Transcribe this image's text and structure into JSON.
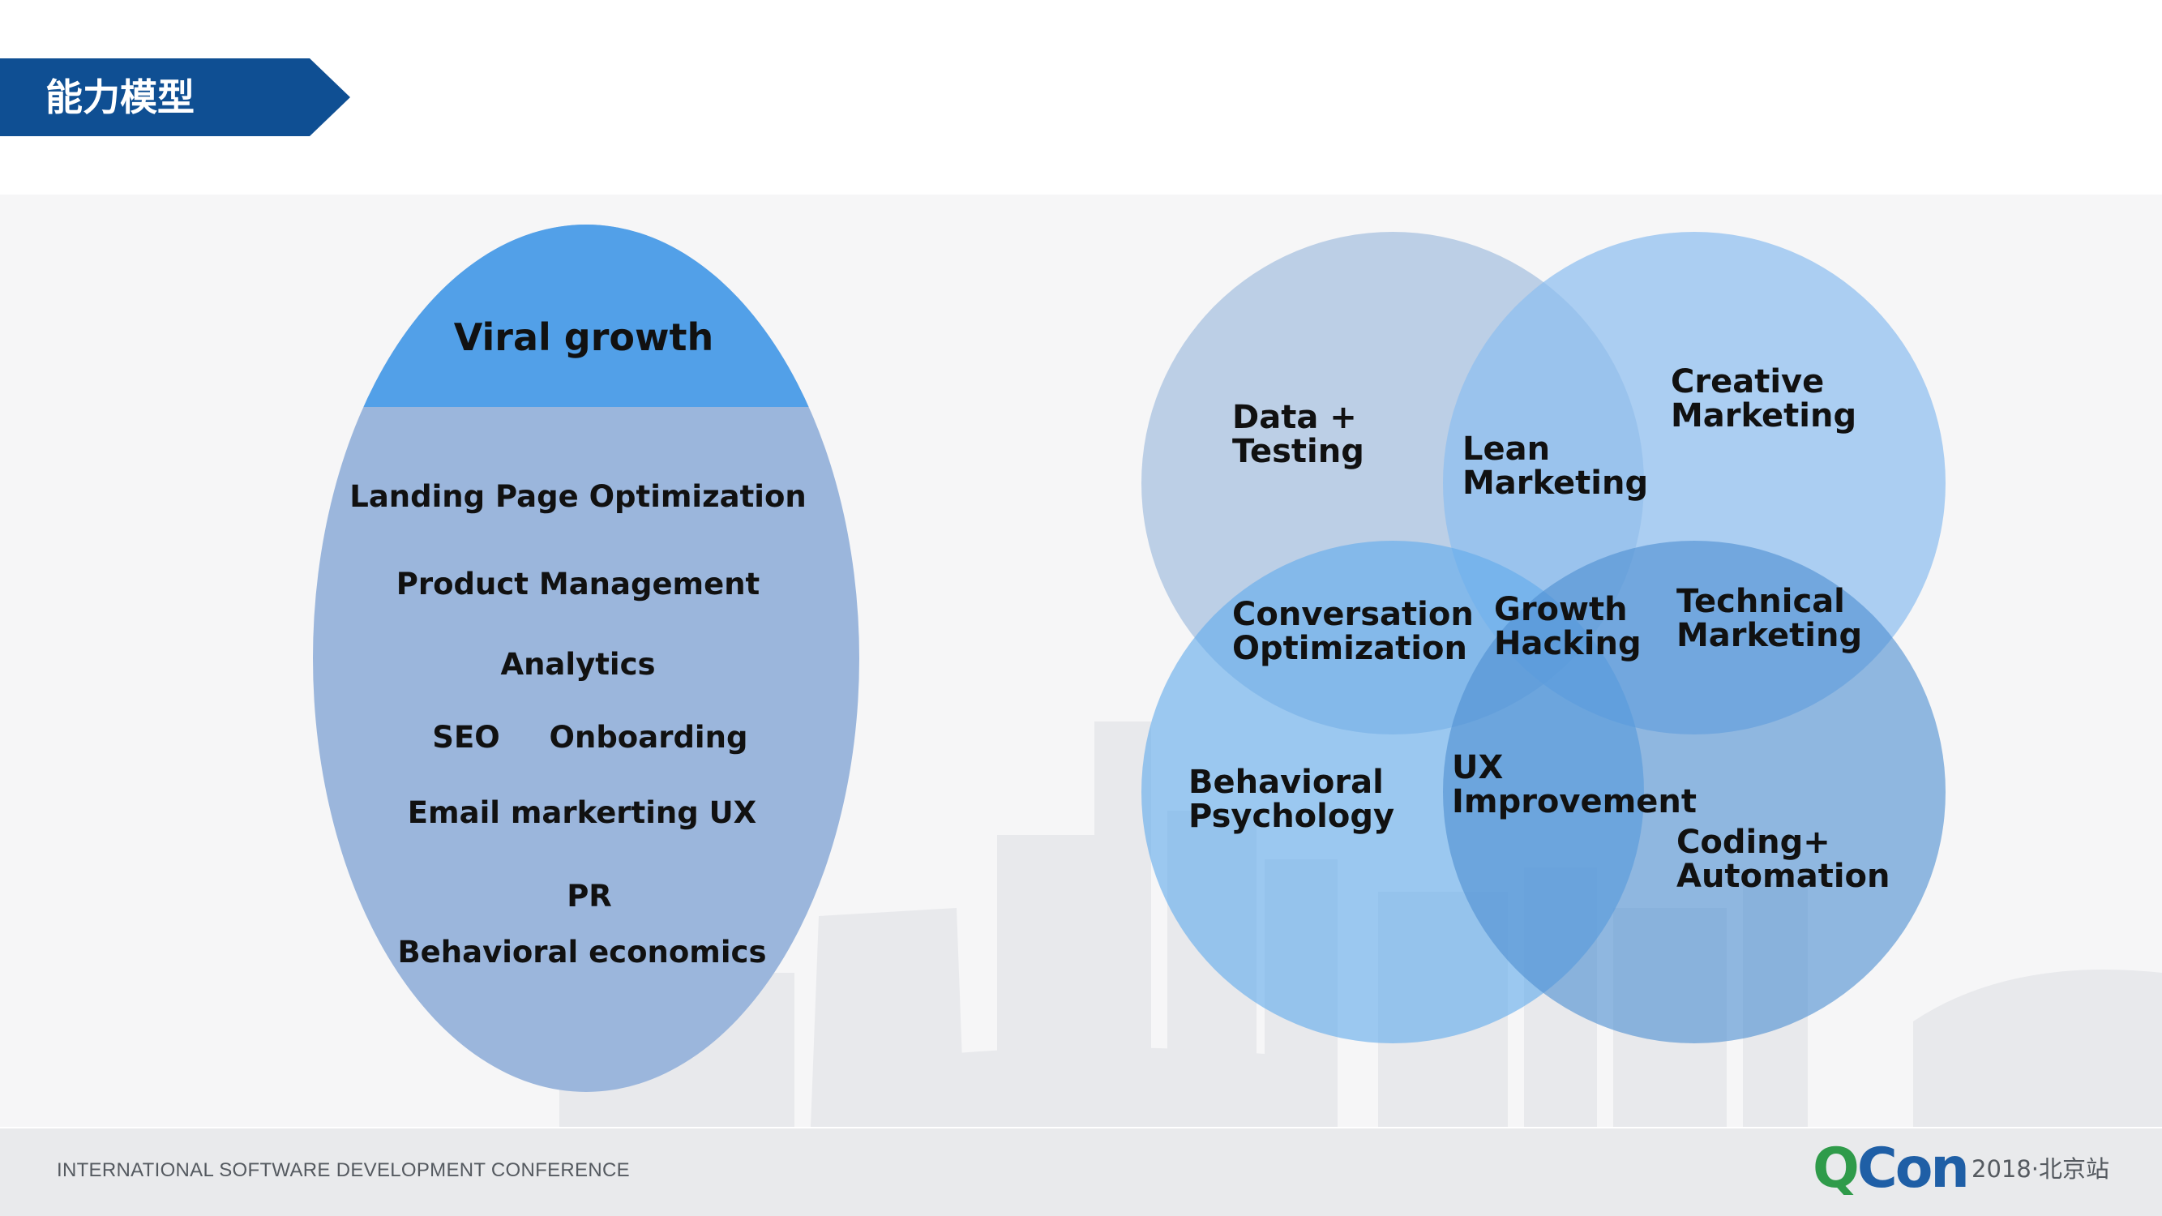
{
  "header": {
    "title": "能力模型"
  },
  "colors": {
    "banner": "#0f4f93",
    "ellipse_top": "#52a0e8",
    "ellipse_body": "#9bb6dc",
    "venn_top_left": "#b4c9e4",
    "venn_top_right": "#8cbdef",
    "venn_center": "#5f9fe0",
    "venn_bottom_left": "#62abec",
    "venn_bottom_right": "#5b98d6"
  },
  "oval": {
    "header": "Viral growth",
    "items": [
      "Landing Page Optimization",
      "Product Management",
      "Analytics",
      "SEO",
      "Onboarding",
      "Email markerting UX",
      "PR",
      "Behavioral economics"
    ]
  },
  "venn": {
    "data_testing": [
      "Data +",
      "Testing"
    ],
    "lean_marketing": [
      "Lean",
      "Marketing"
    ],
    "creative_marketing": [
      "Creative",
      "Marketing"
    ],
    "conversation_optimization": [
      "Conversation",
      "Optimization"
    ],
    "growth_hacking": [
      "Growth",
      "Hacking"
    ],
    "technical_marketing": [
      "Technical",
      "Marketing"
    ],
    "behavioral_psychology": [
      "Behavioral",
      "Psychology"
    ],
    "ux_improvement": [
      "UX",
      "Improvement"
    ],
    "coding_automation": [
      "Coding+",
      "Automation"
    ]
  },
  "footer": {
    "conference": "INTERNATIONAL SOFTWARE DEVELOPMENT CONFERENCE",
    "logo_q": "Q",
    "logo_rest": "Con",
    "edition": "2018·北京站"
  }
}
